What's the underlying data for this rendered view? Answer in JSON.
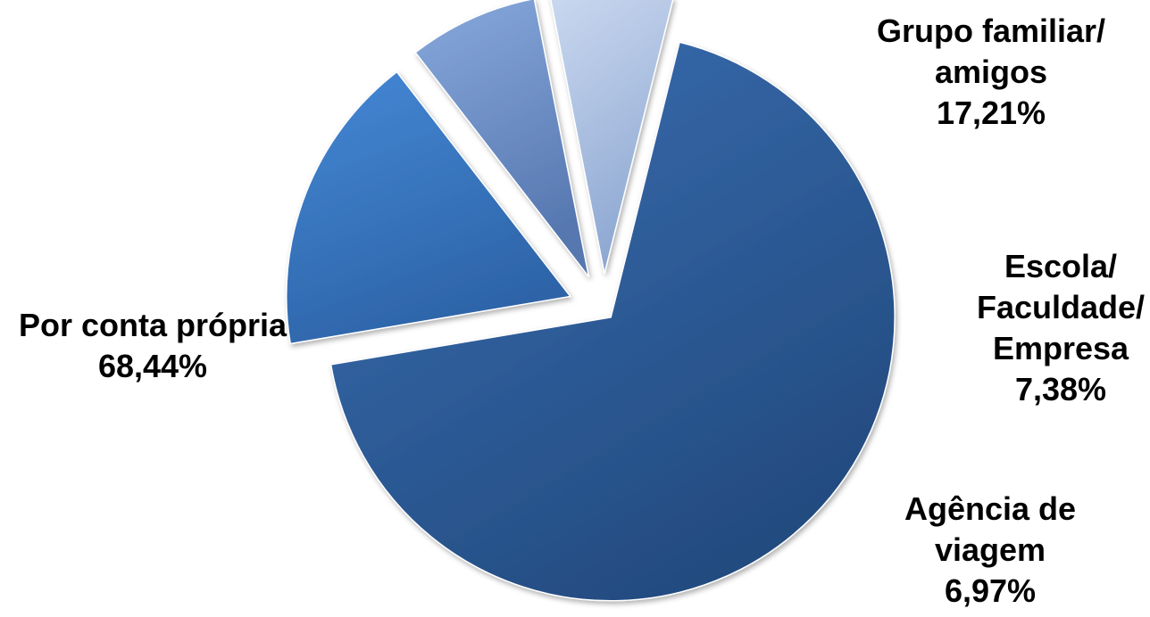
{
  "chart_data": {
    "type": "pie",
    "slices": [
      {
        "name": "Por conta própria",
        "label_lines": [
          "Por conta própria"
        ],
        "value_label": "68,44%",
        "value": 68.44,
        "color": "#2f5f9f"
      },
      {
        "name": "Grupo familiar/ amigos",
        "label_lines": [
          "Grupo familiar/",
          "amigos"
        ],
        "value_label": "17,21%",
        "value": 17.21,
        "color": "#3d7bc7"
      },
      {
        "name": "Escola/ Faculdade/ Empresa",
        "label_lines": [
          "Escola/",
          "Faculdade/",
          "Empresa"
        ],
        "value_label": "7,38%",
        "value": 7.38,
        "color": "#6e93cf"
      },
      {
        "name": "Agência de viagem",
        "label_lines": [
          "Agência de",
          "viagem"
        ],
        "value_label": "6,97%",
        "value": 6.97,
        "color": "#a9bfe2"
      }
    ],
    "legend": "none",
    "exploded": true
  }
}
